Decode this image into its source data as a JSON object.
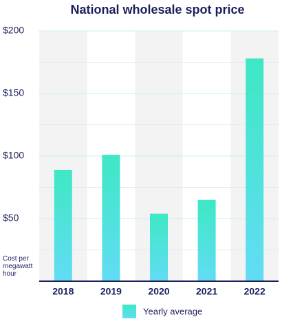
{
  "chart_data": {
    "type": "bar",
    "title": "National wholesale spot price",
    "y_label": "Cost per megawatt hour",
    "categories": [
      "2018",
      "2019",
      "2020",
      "2021",
      "2022"
    ],
    "series": [
      {
        "name": "Yearly average",
        "color": "#49e6d8",
        "values": [
          89,
          101,
          54,
          65,
          178
        ]
      }
    ],
    "ylim": [
      0,
      200
    ],
    "yticks": [
      {
        "value": 50,
        "label": "$50"
      },
      {
        "value": 100,
        "label": "$100"
      },
      {
        "value": 150,
        "label": "$150"
      },
      {
        "value": 200,
        "label": "$200"
      }
    ],
    "minor_yticks": [
      25,
      75,
      125,
      175
    ],
    "grid": true
  }
}
